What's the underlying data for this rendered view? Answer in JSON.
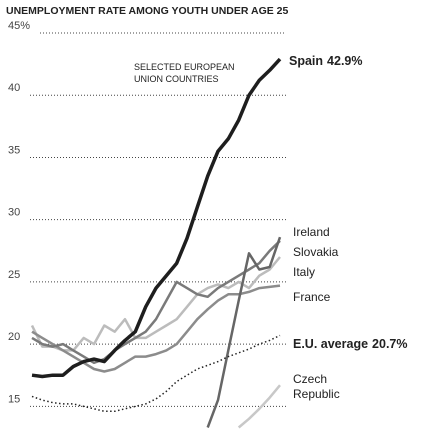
{
  "chart_data": {
    "type": "line",
    "title": "UNEMPLOYMENT RATE AMONG YOUTH UNDER AGE 25",
    "subtitle": "SELECTED EUROPEAN UNION COUNTRIES",
    "categories": [
      null,
      null,
      null,
      null,
      null,
      null,
      null,
      null,
      null,
      null,
      null,
      null,
      null,
      null,
      null,
      null,
      null,
      null,
      null,
      null,
      null,
      null,
      null,
      null,
      null
    ],
    "ylim": [
      13.1,
      45
    ],
    "yticks": [
      15,
      20,
      25,
      30,
      35,
      40,
      {
        "value": 45,
        "label": "45%"
      }
    ],
    "grid": true,
    "series": [
      {
        "name": "Spain",
        "color": "#1e1e1e",
        "values": [
          17.5,
          17.4,
          17.5,
          17.5,
          18.2,
          18.6,
          18.8,
          18.6,
          19.5,
          20.3,
          21.0,
          23.0,
          24.5,
          25.5,
          26.5,
          28.5,
          31.0,
          33.5,
          35.5,
          36.5,
          38.0,
          40.0,
          41.2,
          42.0,
          42.9
        ],
        "value_labels": [
          null,
          null,
          null,
          null,
          null,
          null,
          null,
          null,
          null,
          null,
          null,
          null,
          null,
          null,
          null,
          null,
          null,
          null,
          null,
          null,
          null,
          null,
          null,
          null,
          "42.9%"
        ]
      },
      {
        "name": "Ireland",
        "color": "#666666",
        "values": [
          null,
          null,
          null,
          null,
          null,
          null,
          null,
          null,
          null,
          null,
          null,
          null,
          null,
          null,
          null,
          null,
          null,
          13.3,
          15.5,
          19.5,
          23.5,
          27.3,
          26.0,
          26.2,
          28.6
        ]
      },
      {
        "name": "Slovakia",
        "color": "#7a7a7a",
        "values": [
          20.5,
          20.0,
          19.8,
          20.0,
          19.5,
          19.0,
          18.5,
          18.8,
          19.5,
          20.0,
          20.5,
          21.0,
          22.0,
          23.5,
          25.0,
          24.5,
          24.0,
          23.8,
          24.5,
          25.0,
          25.5,
          26.0,
          26.5,
          27.5,
          28.3
        ]
      },
      {
        "name": "Italy",
        "color": "#bcbcbc",
        "values": [
          21.5,
          19.8,
          19.8,
          19.5,
          19.5,
          20.5,
          20.0,
          21.5,
          21.0,
          22.0,
          20.5,
          20.5,
          21.0,
          21.5,
          22.0,
          23.0,
          24.0,
          24.5,
          24.8,
          24.5,
          25.0,
          24.5,
          25.5,
          26.0,
          27.0
        ]
      },
      {
        "name": "France",
        "color": "#8c8c8c",
        "values": [
          21.0,
          20.5,
          20.0,
          19.5,
          19.0,
          18.5,
          18.0,
          17.8,
          18.0,
          18.5,
          19.0,
          19.0,
          19.2,
          19.5,
          20.0,
          21.0,
          22.0,
          22.8,
          23.5,
          24.0,
          24.0,
          24.2,
          24.5,
          24.6,
          24.7
        ]
      },
      {
        "name": "E.U. average",
        "color": "#222222",
        "dashed": true,
        "values": [
          15.8,
          15.5,
          15.3,
          15.2,
          15.2,
          15.0,
          14.8,
          14.6,
          14.6,
          14.8,
          15.0,
          15.2,
          15.6,
          16.2,
          17.0,
          17.5,
          18.0,
          18.3,
          18.6,
          19.0,
          19.3,
          19.6,
          20.0,
          20.3,
          20.7
        ],
        "value_labels": [
          null,
          null,
          null,
          null,
          null,
          null,
          null,
          null,
          null,
          null,
          null,
          null,
          null,
          null,
          null,
          null,
          null,
          null,
          null,
          null,
          null,
          null,
          null,
          null,
          "20.7%"
        ]
      },
      {
        "name": "Czech Republic",
        "color": "#c8c8c8",
        "values": [
          null,
          null,
          null,
          null,
          null,
          null,
          null,
          null,
          null,
          null,
          null,
          null,
          null,
          null,
          null,
          null,
          null,
          null,
          null,
          null,
          13.3,
          14.0,
          14.8,
          15.7,
          16.7
        ]
      }
    ]
  }
}
